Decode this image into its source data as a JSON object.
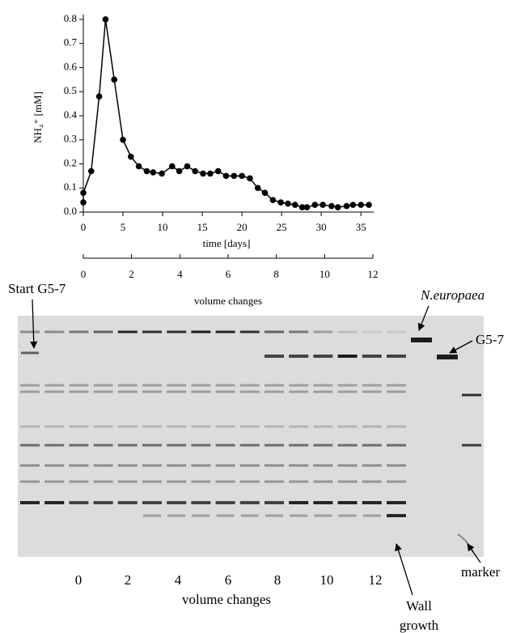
{
  "chart_data": {
    "type": "line",
    "ylabel": "NH₄⁺ [mM]",
    "xlabel": "time [days]",
    "x": [
      0,
      0,
      1,
      2,
      2.8,
      3.9,
      5,
      6,
      7,
      8,
      8.8,
      9.9,
      11.2,
      12.1,
      13.1,
      14.1,
      15.1,
      16,
      17,
      18,
      19,
      20,
      21,
      22,
      22.9,
      23.9,
      24.9,
      25.8,
      26.7,
      27.6,
      28.2,
      29.2,
      30.2,
      31.3,
      32.1,
      33.2,
      34,
      35,
      36
    ],
    "values": [
      0.04,
      0.08,
      0.17,
      0.48,
      0.8,
      0.55,
      0.3,
      0.23,
      0.19,
      0.17,
      0.165,
      0.16,
      0.19,
      0.17,
      0.19,
      0.17,
      0.16,
      0.16,
      0.17,
      0.15,
      0.15,
      0.15,
      0.14,
      0.1,
      0.08,
      0.05,
      0.04,
      0.035,
      0.03,
      0.02,
      0.02,
      0.03,
      0.03,
      0.025,
      0.02,
      0.025,
      0.03,
      0.03,
      0.03
    ],
    "color": "#000000",
    "xlim": [
      0,
      36
    ],
    "xticks": [
      0,
      5,
      10,
      15,
      20,
      25,
      30,
      35
    ],
    "ylim": [
      0,
      0.82
    ],
    "yticks": [
      {
        "value": 0,
        "label": "0.0"
      },
      0.1,
      0.2,
      0.3,
      0.4,
      0.5,
      0.6,
      0.7,
      0.8
    ],
    "x2label": "volume changes",
    "x2lim": [
      0,
      12
    ],
    "x2ticks": [
      0,
      2,
      4,
      6,
      8,
      10,
      12
    ]
  },
  "gel": {
    "lane_labels": [
      0,
      2,
      4,
      6,
      8,
      10,
      12
    ],
    "axis_label": "volume changes",
    "start_label": "Start G5-7",
    "europaea_label": "N.europaea",
    "g57_label": "G5-7",
    "wall_label": [
      "Wall",
      "growth"
    ],
    "marker_label": "marker"
  }
}
